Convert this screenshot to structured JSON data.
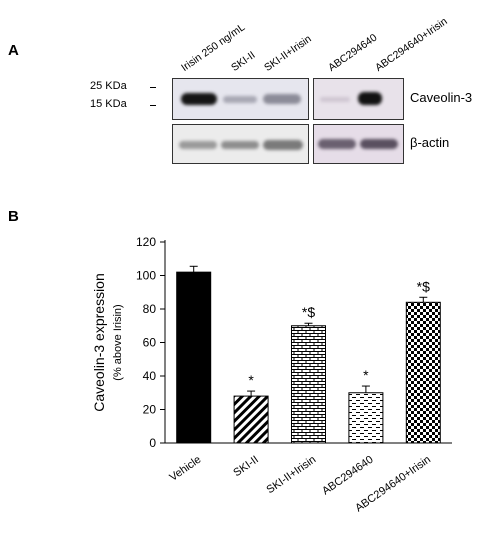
{
  "panel_a": {
    "label": "A",
    "lanes_left": [
      "Irisin 250 ng/mL",
      "SKI-II",
      "SKI-II+Irisin"
    ],
    "lanes_right": [
      "ABC294640",
      "ABC294640+Irisin"
    ],
    "markers": [
      "25 KDa",
      "15 KDa"
    ],
    "proteins": [
      "Caveolin-3",
      "β-actin"
    ]
  },
  "panel_b": {
    "label": "B"
  },
  "chart_data": {
    "type": "bar",
    "categories": [
      "Vehicle",
      "SKI-II",
      "SKI-II+Irisin",
      "ABC294640",
      "ABC294640+Irisin"
    ],
    "values": [
      102,
      28,
      70,
      30,
      84
    ],
    "errors": [
      3.5,
      3,
      1.5,
      4,
      3
    ],
    "annotations": [
      "",
      "*",
      "*$",
      "*",
      "*$"
    ],
    "patterns": [
      "solid-black",
      "diagonal-stripes",
      "brick",
      "light-dash",
      "checker"
    ],
    "ylabel": "Caveolin-3 expression",
    "ylabel_sub": "(% above Irisin)",
    "ylim": [
      0,
      120
    ],
    "yticks": [
      0,
      20,
      40,
      60,
      80,
      100,
      120
    ],
    "grid": false
  }
}
